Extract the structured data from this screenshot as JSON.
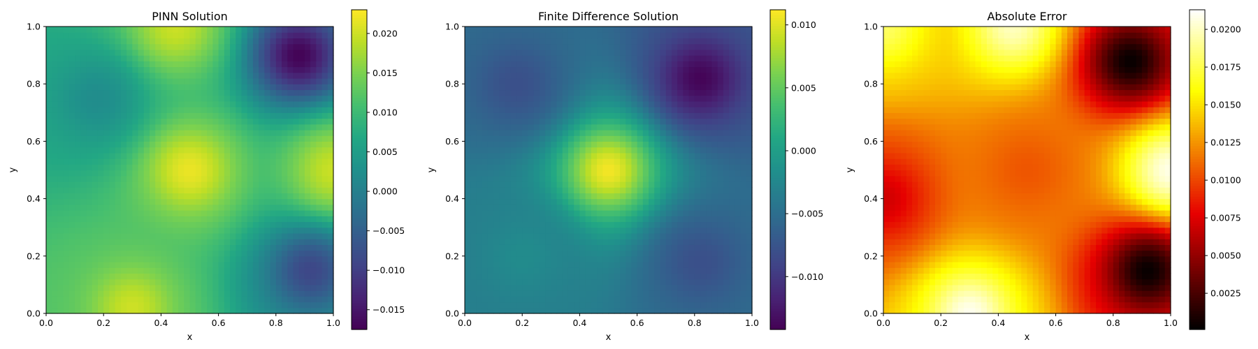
{
  "chart_data": [
    {
      "type": "heatmap",
      "title": "PINN Solution",
      "xlabel": "x",
      "ylabel": "y",
      "xlim": [
        0.0,
        1.0
      ],
      "ylim": [
        0.0,
        1.0
      ],
      "xticks": [
        "0.0",
        "0.2",
        "0.4",
        "0.6",
        "0.8",
        "1.0"
      ],
      "yticks": [
        "0.0",
        "0.2",
        "0.4",
        "0.6",
        "0.8",
        "1.0"
      ],
      "colormap": "viridis",
      "colorbar": {
        "range": [
          -0.0175,
          0.023
        ],
        "ticks": [
          -0.015,
          -0.01,
          -0.005,
          0.0,
          0.005,
          0.01,
          0.015,
          0.02
        ],
        "tick_labels": [
          "−0.015",
          "−0.010",
          "−0.005",
          "0.000",
          "0.005",
          "0.010",
          "0.015",
          "0.020"
        ]
      },
      "features": [
        {
          "x": 0.5,
          "y": 0.5,
          "value": 0.022
        },
        {
          "x": 0.88,
          "y": 0.9,
          "value": -0.0175
        },
        {
          "x": 0.92,
          "y": 0.15,
          "value": -0.009
        },
        {
          "x": 0.18,
          "y": 0.75,
          "value": 0.002
        },
        {
          "x": 1.0,
          "y": 0.5,
          "value": 0.02
        },
        {
          "x": 0.45,
          "y": 1.0,
          "value": 0.02
        },
        {
          "x": 0.3,
          "y": 0.02,
          "value": 0.02
        }
      ]
    },
    {
      "type": "heatmap",
      "title": "Finite Difference Solution",
      "xlabel": "x",
      "ylabel": "y",
      "xlim": [
        0.0,
        1.0
      ],
      "ylim": [
        0.0,
        1.0
      ],
      "xticks": [
        "0.0",
        "0.2",
        "0.4",
        "0.6",
        "0.8",
        "1.0"
      ],
      "yticks": [
        "0.0",
        "0.2",
        "0.4",
        "0.6",
        "0.8",
        "1.0"
      ],
      "colormap": "viridis",
      "colorbar": {
        "range": [
          -0.0142,
          0.0112
        ],
        "ticks": [
          -0.01,
          -0.005,
          0.0,
          0.005,
          0.01
        ],
        "tick_labels": [
          "−0.010",
          "−0.005",
          "0.000",
          "0.005",
          "0.010"
        ]
      },
      "features": [
        {
          "x": 0.5,
          "y": 0.5,
          "value": 0.011
        },
        {
          "x": 0.82,
          "y": 0.82,
          "value": -0.014
        },
        {
          "x": 0.18,
          "y": 0.8,
          "value": -0.008
        },
        {
          "x": 0.82,
          "y": 0.18,
          "value": -0.008
        },
        {
          "x": 0.2,
          "y": 0.2,
          "value": -0.002
        }
      ]
    },
    {
      "type": "heatmap",
      "title": "Absolute Error",
      "xlabel": "x",
      "ylabel": "y",
      "xlim": [
        0.0,
        1.0
      ],
      "ylim": [
        0.0,
        1.0
      ],
      "xticks": [
        "0.0",
        "0.2",
        "0.4",
        "0.6",
        "0.8",
        "1.0"
      ],
      "yticks": [
        "0.0",
        "0.2",
        "0.4",
        "0.6",
        "0.8",
        "1.0"
      ],
      "colormap": "hot",
      "colorbar": {
        "range": [
          0.0001,
          0.0213
        ],
        "ticks": [
          0.0025,
          0.005,
          0.0075,
          0.01,
          0.0125,
          0.015,
          0.0175,
          0.02
        ],
        "tick_labels": [
          "0.0025",
          "0.0050",
          "0.0075",
          "0.0100",
          "0.0125",
          "0.0150",
          "0.0175",
          "0.0200"
        ]
      },
      "features": [
        {
          "x": 0.3,
          "y": 0.0,
          "value": 0.021
        },
        {
          "x": 0.45,
          "y": 1.0,
          "value": 0.02
        },
        {
          "x": 1.0,
          "y": 0.5,
          "value": 0.021
        },
        {
          "x": 0.0,
          "y": 1.0,
          "value": 0.018
        },
        {
          "x": 0.0,
          "y": 0.4,
          "value": 0.007
        },
        {
          "x": 0.86,
          "y": 0.88,
          "value": 0.0002
        },
        {
          "x": 0.92,
          "y": 0.15,
          "value": 0.0002
        },
        {
          "x": 0.5,
          "y": 0.5,
          "value": 0.0105
        }
      ]
    }
  ]
}
